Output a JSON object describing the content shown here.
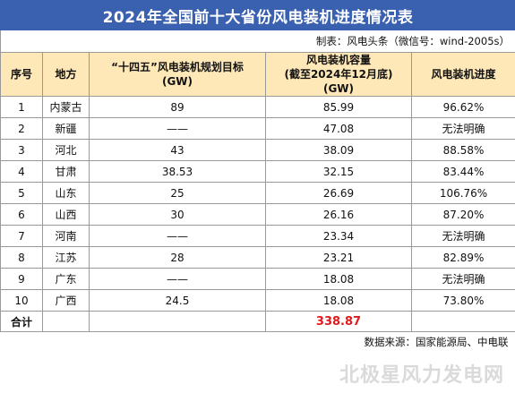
{
  "title": "2024年全国前十大省份风电装机进度情况表",
  "maker": "制表：风电头条（微信号：wind-2005s）",
  "headers": {
    "seq": "序号",
    "region": "地方",
    "plan_line1": "“十四五”风电装机规划目标",
    "plan_line2": "(GW)",
    "cap_line1": "风电装机容量",
    "cap_line2": "(截至2024年12月底)",
    "cap_line3": "(GW)",
    "progress": "风电装机进度"
  },
  "rows": [
    {
      "seq": "1",
      "region": "内蒙古",
      "plan": "89",
      "capacity": "85.99",
      "progress": "96.62%"
    },
    {
      "seq": "2",
      "region": "新疆",
      "plan": "——",
      "capacity": "47.08",
      "progress": "无法明确"
    },
    {
      "seq": "3",
      "region": "河北",
      "plan": "43",
      "capacity": "38.09",
      "progress": "88.58%"
    },
    {
      "seq": "4",
      "region": "甘肃",
      "plan": "38.53",
      "capacity": "32.15",
      "progress": "83.44%"
    },
    {
      "seq": "5",
      "region": "山东",
      "plan": "25",
      "capacity": "26.69",
      "progress": "106.76%"
    },
    {
      "seq": "6",
      "region": "山西",
      "plan": "30",
      "capacity": "26.16",
      "progress": "87.20%"
    },
    {
      "seq": "7",
      "region": "河南",
      "plan": "——",
      "capacity": "23.34",
      "progress": "无法明确"
    },
    {
      "seq": "8",
      "region": "江苏",
      "plan": "28",
      "capacity": "23.21",
      "progress": "82.89%"
    },
    {
      "seq": "9",
      "region": "广东",
      "plan": "——",
      "capacity": "18.08",
      "progress": "无法明确"
    },
    {
      "seq": "10",
      "region": "广西",
      "plan": "24.5",
      "capacity": "18.08",
      "progress": "73.80%"
    }
  ],
  "total": {
    "label": "合计",
    "capacity": "338.87"
  },
  "source": "数据来源：国家能源局、中电联",
  "watermark": "北极星风力发电网",
  "colors": {
    "title_bg": "#3a60b0",
    "header_bg": "#ffe8b8",
    "total_value": "#e31a1c"
  }
}
